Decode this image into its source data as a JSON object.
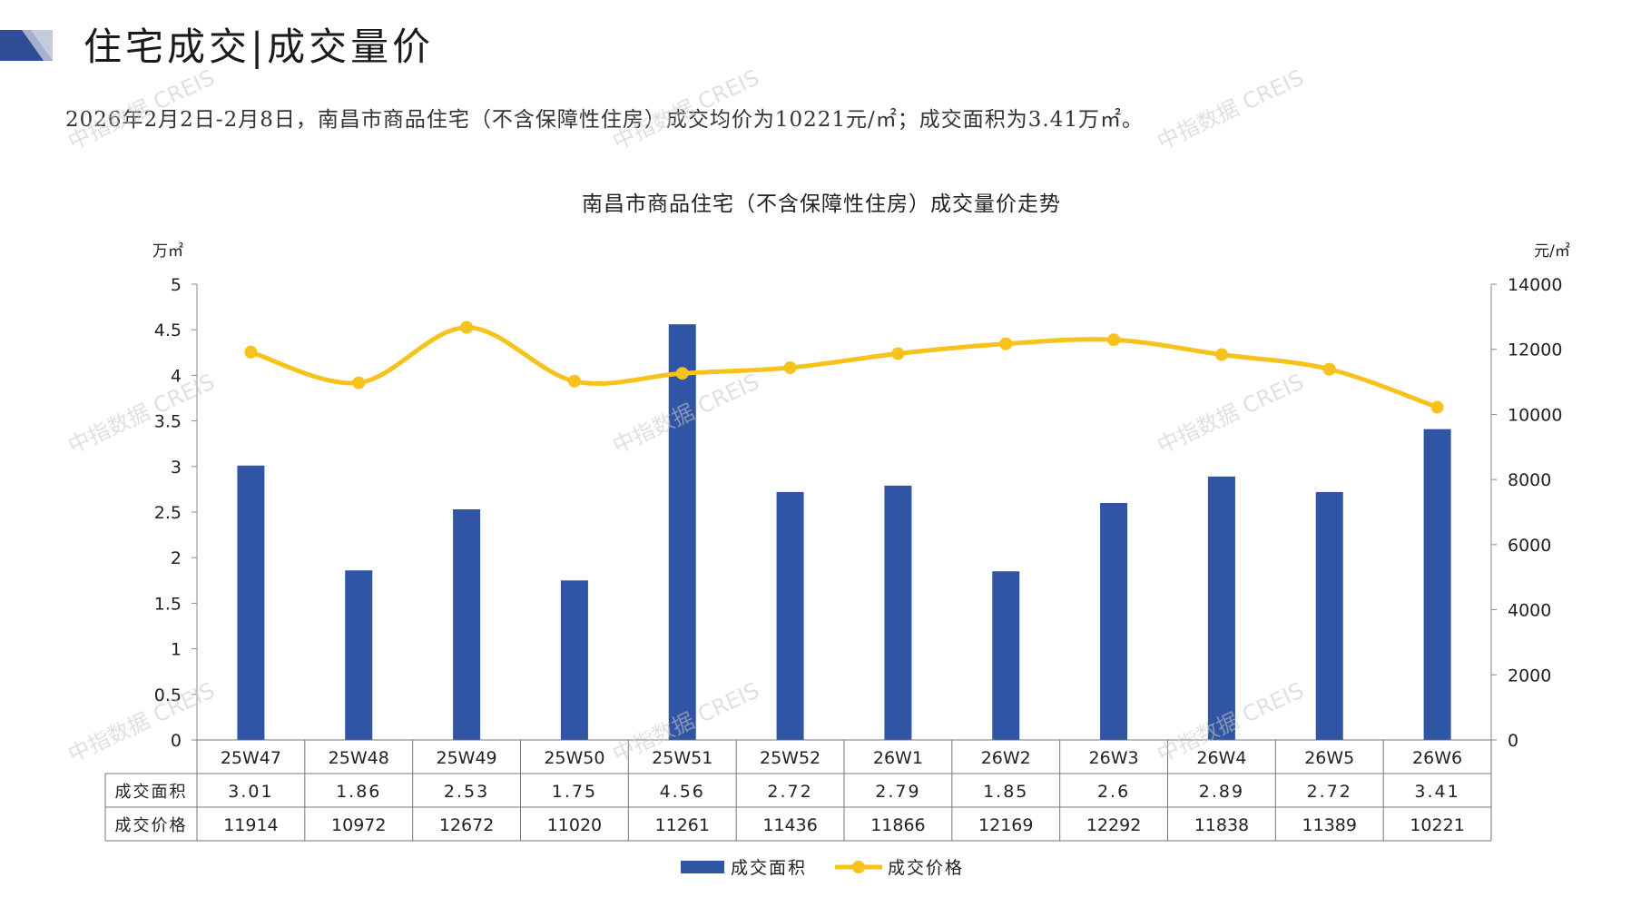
{
  "header": {
    "title": "住宅成交|成交量价",
    "summary": "2026年2月2日-2月8日，南昌市商品住宅（不含保障性住房）成交均价为10221元/㎡；成交面积为3.41万㎡。"
  },
  "colors": {
    "bar": "#2f55a4",
    "line": "#f7c21b",
    "logo_dark": "#2f4d97",
    "logo_light": "#b9c2d6"
  },
  "watermark": "中指数据 CREIS",
  "chart_data": {
    "type": "bar",
    "title": "南昌市商品住宅（不含保障性住房）成交量价走势",
    "y_left_unit": "万㎡",
    "y_right_unit": "元/㎡",
    "y_left_ticks": [
      "0",
      "0.5",
      "1",
      "1.5",
      "2",
      "2.5",
      "3",
      "3.5",
      "4",
      "4.5",
      "5"
    ],
    "y_right_ticks": [
      "0",
      "2000",
      "4000",
      "6000",
      "8000",
      "10000",
      "12000",
      "14000"
    ],
    "ylim_left": [
      0,
      5
    ],
    "ylim_right": [
      0,
      14000
    ],
    "categories": [
      "25W47",
      "25W48",
      "25W49",
      "25W50",
      "25W51",
      "25W52",
      "26W1",
      "26W2",
      "26W3",
      "26W4",
      "26W5",
      "26W6"
    ],
    "series": [
      {
        "name": "成交面积",
        "type": "bar",
        "axis": "left",
        "values": [
          3.01,
          1.86,
          2.53,
          1.75,
          4.56,
          2.72,
          2.79,
          1.85,
          2.6,
          2.89,
          2.72,
          3.41
        ],
        "labels": [
          "3.01",
          "1.86",
          "2.53",
          "1.75",
          "4.56",
          "2.72",
          "2.79",
          "1.85",
          "2.6",
          "2.89",
          "2.72",
          "3.41"
        ]
      },
      {
        "name": "成交价格",
        "type": "line",
        "axis": "right",
        "values": [
          11914,
          10972,
          12672,
          11020,
          11261,
          11436,
          11866,
          12169,
          12292,
          11838,
          11389,
          10221
        ],
        "labels": [
          "11914",
          "10972",
          "12672",
          "11020",
          "11261",
          "11436",
          "11866",
          "12169",
          "12292",
          "11838",
          "11389",
          "10221"
        ]
      }
    ],
    "legend": "bottom",
    "grid": false,
    "data_table": true
  }
}
